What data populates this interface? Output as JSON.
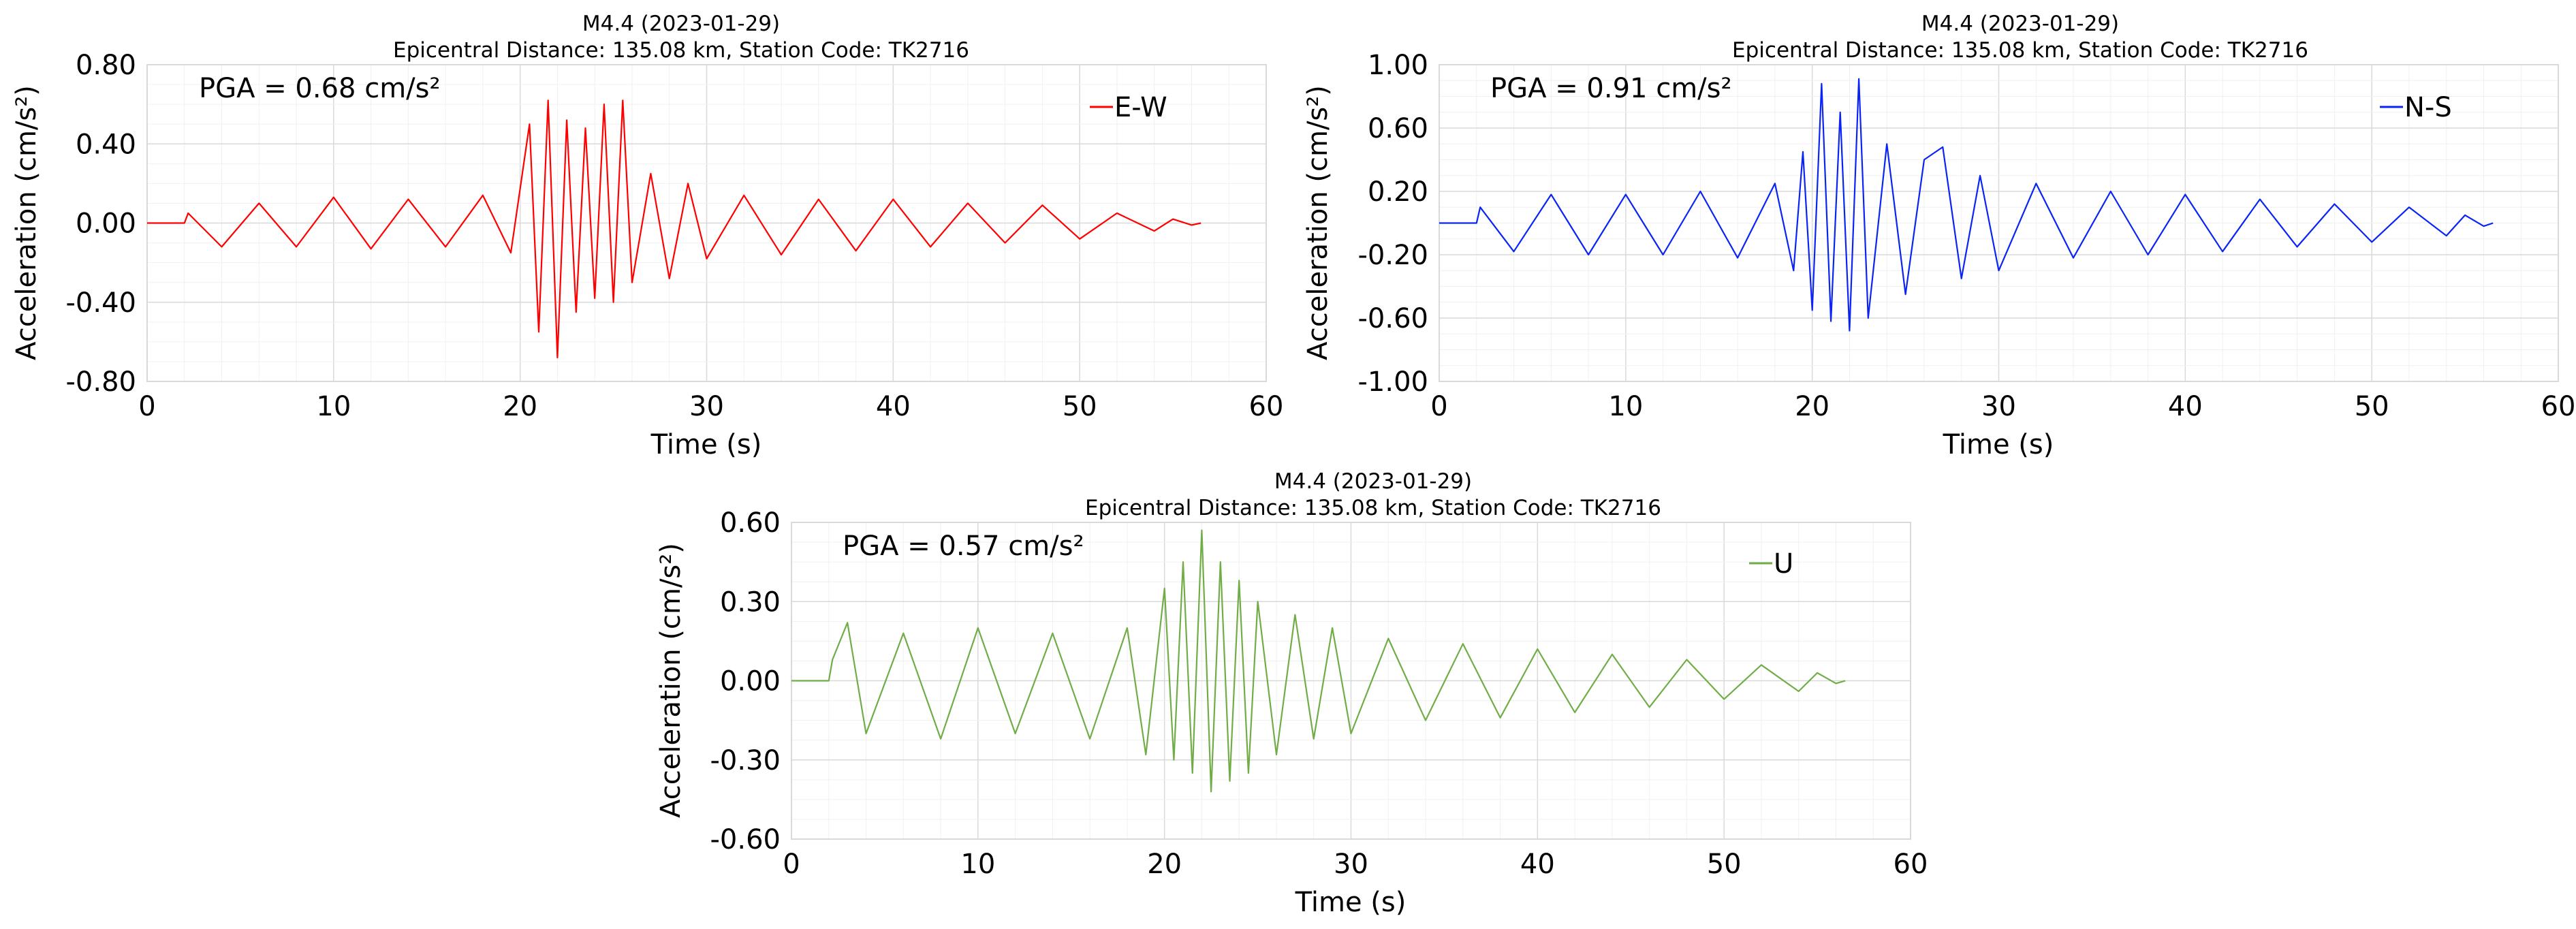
{
  "chart_data": [
    {
      "type": "line",
      "title": "M4.4 (2023-01-29)",
      "subtitle": "Epicentral Distance: 135.08 km, Station Code: TK2716",
      "xlabel": "Time (s)",
      "ylabel": "Acceleration (cm/s²)",
      "xlim": [
        0,
        60
      ],
      "ylim": [
        -0.8,
        0.8
      ],
      "x_ticks": [
        0,
        10,
        20,
        30,
        40,
        50,
        60
      ],
      "y_ticks": [
        -0.8,
        -0.4,
        0.0,
        0.4,
        0.8
      ],
      "x_tick_labels": [
        "0",
        "10",
        "20",
        "30",
        "40",
        "50",
        "60"
      ],
      "y_tick_labels": [
        "-0.80",
        "-0.40",
        "0.00",
        "0.40",
        "0.80"
      ],
      "grid": true,
      "annotation": "PGA = 0.68 cm/s²",
      "legend_position": "top-right",
      "series": [
        {
          "name": "E-W",
          "color": "#ff0000",
          "x": [
            0,
            2,
            2.2,
            4,
            6,
            8,
            10,
            12,
            14,
            16,
            18,
            19.5,
            20.5,
            21,
            21.5,
            22,
            22.5,
            23,
            23.5,
            24,
            24.5,
            25,
            25.5,
            26,
            27,
            28,
            29,
            30,
            32,
            34,
            36,
            38,
            40,
            42,
            44,
            46,
            48,
            50,
            52,
            54,
            55,
            56,
            56.5
          ],
          "values": [
            0,
            0,
            0.05,
            -0.12,
            0.1,
            -0.12,
            0.13,
            -0.13,
            0.12,
            -0.12,
            0.14,
            -0.15,
            0.5,
            -0.55,
            0.62,
            -0.68,
            0.52,
            -0.45,
            0.48,
            -0.38,
            0.6,
            -0.4,
            0.62,
            -0.3,
            0.25,
            -0.28,
            0.2,
            -0.18,
            0.14,
            -0.16,
            0.12,
            -0.14,
            0.12,
            -0.12,
            0.1,
            -0.1,
            0.09,
            -0.08,
            0.05,
            -0.04,
            0.02,
            -0.01,
            0
          ]
        }
      ]
    },
    {
      "type": "line",
      "title": "M4.4 (2023-01-29)",
      "subtitle": "Epicentral Distance: 135.08 km, Station Code: TK2716",
      "xlabel": "Time (s)",
      "ylabel": "Acceleration (cm/s²)",
      "xlim": [
        0,
        60
      ],
      "ylim": [
        -1.0,
        1.0
      ],
      "x_ticks": [
        0,
        10,
        20,
        30,
        40,
        50,
        60
      ],
      "y_ticks": [
        -1.0,
        -0.6,
        -0.2,
        0.2,
        0.6,
        1.0
      ],
      "x_tick_labels": [
        "0",
        "10",
        "20",
        "30",
        "40",
        "50",
        "60"
      ],
      "y_tick_labels": [
        "-1.00",
        "-0.60",
        "-0.20",
        "0.20",
        "0.60",
        "1.00"
      ],
      "grid": true,
      "annotation": "PGA = 0.91 cm/s²",
      "legend_position": "top-right",
      "series": [
        {
          "name": "N-S",
          "color": "#0a24f5",
          "x": [
            0,
            2,
            2.2,
            4,
            6,
            8,
            10,
            12,
            14,
            16,
            18,
            19,
            19.5,
            20,
            20.5,
            21,
            21.5,
            22,
            22.5,
            23,
            24,
            25,
            26,
            27,
            28,
            29,
            30,
            32,
            34,
            36,
            38,
            40,
            42,
            44,
            46,
            48,
            50,
            52,
            54,
            55,
            56,
            56.5
          ],
          "values": [
            0,
            0,
            0.1,
            -0.18,
            0.18,
            -0.2,
            0.18,
            -0.2,
            0.2,
            -0.22,
            0.25,
            -0.3,
            0.45,
            -0.55,
            0.88,
            -0.62,
            0.7,
            -0.68,
            0.91,
            -0.6,
            0.5,
            -0.45,
            0.4,
            0.48,
            -0.35,
            0.3,
            -0.3,
            0.25,
            -0.22,
            0.2,
            -0.2,
            0.18,
            -0.18,
            0.15,
            -0.15,
            0.12,
            -0.12,
            0.1,
            -0.08,
            0.05,
            -0.02,
            0
          ]
        }
      ]
    },
    {
      "type": "line",
      "title": "M4.4 (2023-01-29)",
      "subtitle": "Epicentral Distance: 135.08 km, Station Code: TK2716",
      "xlabel": "Time (s)",
      "ylabel": "Acceleration (cm/s²)",
      "xlim": [
        0,
        60
      ],
      "ylim": [
        -0.6,
        0.6
      ],
      "x_ticks": [
        0,
        10,
        20,
        30,
        40,
        50,
        60
      ],
      "y_ticks": [
        -0.6,
        -0.3,
        0.0,
        0.3,
        0.6
      ],
      "x_tick_labels": [
        "0",
        "10",
        "20",
        "30",
        "40",
        "50",
        "60"
      ],
      "y_tick_labels": [
        "-0.60",
        "-0.30",
        "0.00",
        "0.30",
        "0.60"
      ],
      "grid": true,
      "annotation": "PGA = 0.57 cm/s²",
      "legend_position": "top-right",
      "series": [
        {
          "name": "U",
          "color": "#70ad47",
          "x": [
            0,
            2,
            2.2,
            3,
            4,
            6,
            8,
            10,
            12,
            14,
            16,
            18,
            19,
            20,
            20.5,
            21,
            21.5,
            22,
            22.5,
            23,
            23.5,
            24,
            24.5,
            25,
            26,
            27,
            28,
            29,
            30,
            32,
            34,
            36,
            38,
            40,
            42,
            44,
            46,
            48,
            50,
            52,
            54,
            55,
            56,
            56.5
          ],
          "values": [
            0,
            0,
            0.08,
            0.22,
            -0.2,
            0.18,
            -0.22,
            0.2,
            -0.2,
            0.18,
            -0.22,
            0.2,
            -0.28,
            0.35,
            -0.3,
            0.45,
            -0.35,
            0.57,
            -0.42,
            0.45,
            -0.38,
            0.38,
            -0.35,
            0.3,
            -0.28,
            0.25,
            -0.22,
            0.2,
            -0.2,
            0.16,
            -0.15,
            0.14,
            -0.14,
            0.12,
            -0.12,
            0.1,
            -0.1,
            0.08,
            -0.07,
            0.06,
            -0.04,
            0.03,
            -0.01,
            0
          ]
        }
      ]
    }
  ]
}
